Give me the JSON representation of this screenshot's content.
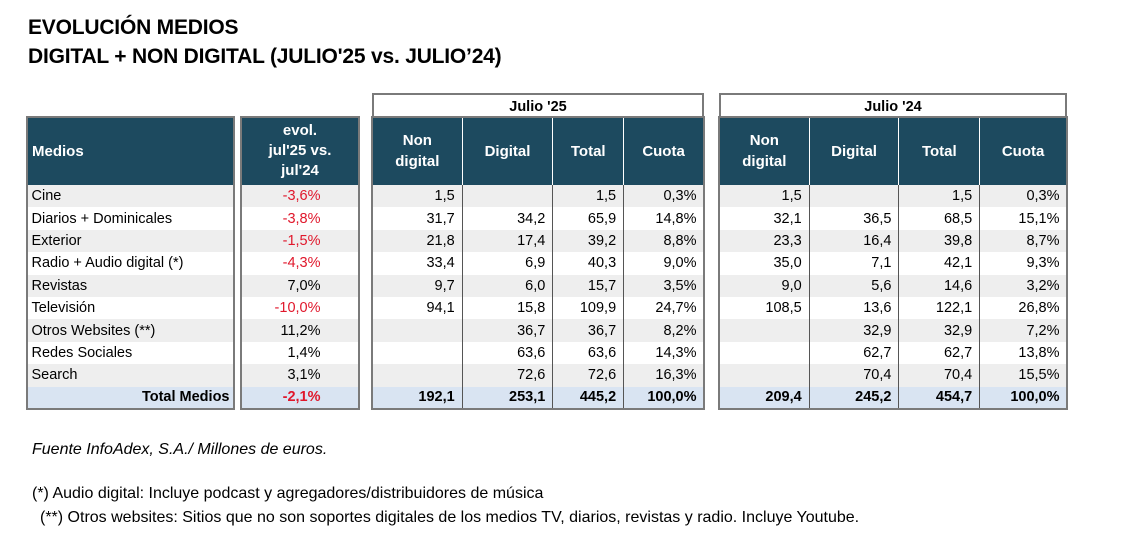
{
  "title": {
    "line1": "EVOLUCIÓN MEDIOS",
    "line2": "DIGITAL + NON DIGITAL (JULIO'25 vs. JULIO’24)"
  },
  "headers": {
    "medios": "Medios",
    "evol": [
      "evol.",
      "jul'25 vs.",
      "jul'24"
    ],
    "group_25": "Julio '25",
    "group_24": "Julio  '24",
    "non_digital": [
      "Non",
      "digital"
    ],
    "digital": "Digital",
    "total": "Total",
    "cuota": "Cuota"
  },
  "rows": [
    {
      "medio": "Cine",
      "evol": "-3,6%",
      "neg": true,
      "j25": {
        "non_digital": "1,5",
        "digital": "",
        "total": "1,5",
        "cuota": "0,3%"
      },
      "j24": {
        "non_digital": "1,5",
        "digital": "",
        "total": "1,5",
        "cuota": "0,3%"
      }
    },
    {
      "medio": "Diarios + Dominicales",
      "evol": "-3,8%",
      "neg": true,
      "j25": {
        "non_digital": "31,7",
        "digital": "34,2",
        "total": "65,9",
        "cuota": "14,8%"
      },
      "j24": {
        "non_digital": "32,1",
        "digital": "36,5",
        "total": "68,5",
        "cuota": "15,1%"
      }
    },
    {
      "medio": "Exterior",
      "evol": "-1,5%",
      "neg": true,
      "j25": {
        "non_digital": "21,8",
        "digital": "17,4",
        "total": "39,2",
        "cuota": "8,8%"
      },
      "j24": {
        "non_digital": "23,3",
        "digital": "16,4",
        "total": "39,8",
        "cuota": "8,7%"
      }
    },
    {
      "medio": "Radio + Audio digital (*)",
      "evol": "-4,3%",
      "neg": true,
      "j25": {
        "non_digital": "33,4",
        "digital": "6,9",
        "total": "40,3",
        "cuota": "9,0%"
      },
      "j24": {
        "non_digital": "35,0",
        "digital": "7,1",
        "total": "42,1",
        "cuota": "9,3%"
      }
    },
    {
      "medio": "Revistas",
      "evol": "7,0%",
      "neg": false,
      "j25": {
        "non_digital": "9,7",
        "digital": "6,0",
        "total": "15,7",
        "cuota": "3,5%"
      },
      "j24": {
        "non_digital": "9,0",
        "digital": "5,6",
        "total": "14,6",
        "cuota": "3,2%"
      }
    },
    {
      "medio": "Televisión",
      "evol": "-10,0%",
      "neg": true,
      "j25": {
        "non_digital": "94,1",
        "digital": "15,8",
        "total": "109,9",
        "cuota": "24,7%"
      },
      "j24": {
        "non_digital": "108,5",
        "digital": "13,6",
        "total": "122,1",
        "cuota": "26,8%"
      }
    },
    {
      "medio": "Otros Websites (**)",
      "evol": "11,2%",
      "neg": false,
      "j25": {
        "non_digital": "",
        "digital": "36,7",
        "total": "36,7",
        "cuota": "8,2%"
      },
      "j24": {
        "non_digital": "",
        "digital": "32,9",
        "total": "32,9",
        "cuota": "7,2%"
      }
    },
    {
      "medio": "Redes Sociales",
      "evol": "1,4%",
      "neg": false,
      "j25": {
        "non_digital": "",
        "digital": "63,6",
        "total": "63,6",
        "cuota": "14,3%"
      },
      "j24": {
        "non_digital": "",
        "digital": "62,7",
        "total": "62,7",
        "cuota": "13,8%"
      }
    },
    {
      "medio": "Search",
      "evol": "3,1%",
      "neg": false,
      "j25": {
        "non_digital": "",
        "digital": "72,6",
        "total": "72,6",
        "cuota": "16,3%"
      },
      "j24": {
        "non_digital": "",
        "digital": "70,4",
        "total": "70,4",
        "cuota": "15,5%"
      }
    }
  ],
  "total": {
    "medio": "Total Medios",
    "evol": "-2,1%",
    "neg": true,
    "j25": {
      "non_digital": "192,1",
      "digital": "253,1",
      "total": "445,2",
      "cuota": "100,0%"
    },
    "j24": {
      "non_digital": "209,4",
      "digital": "245,2",
      "total": "454,7",
      "cuota": "100,0%"
    }
  },
  "notes": {
    "source": "Fuente InfoAdex, S.A./ Millones de euros.",
    "note1": "(*) Audio digital: Incluye podcast y agregadores/distribuidores de música",
    "note2": "(**) Otros websites: Sitios que no son soportes digitales de los medios TV, diarios, revistas y radio. Incluye Youtube."
  },
  "colors": {
    "header_bg": "#1d4a5f",
    "total_bg": "#d9e4f2",
    "negative": "#e0172b",
    "alt_row": "#eeeeee"
  }
}
